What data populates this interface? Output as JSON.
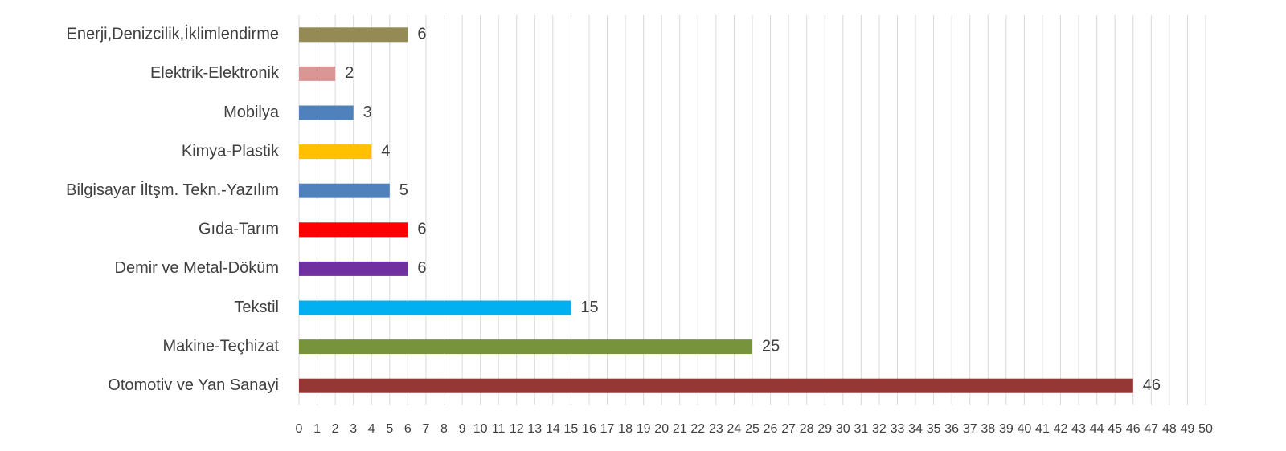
{
  "chart_data": {
    "type": "bar",
    "orientation": "horizontal",
    "categories": [
      "Enerji,Denizcilik,İklimlendirme",
      "Elektrik-Elektronik",
      "Mobilya",
      "Kimya-Plastik",
      "Bilgisayar İltşm. Tekn.-Yazılım",
      "Gıda-Tarım",
      "Demir ve Metal-Döküm",
      "Tekstil",
      "Makine-Teçhizat",
      "Otomotiv ve Yan Sanayi"
    ],
    "values": [
      6,
      2,
      3,
      4,
      5,
      6,
      6,
      15,
      25,
      46
    ],
    "colors": [
      "#948a54",
      "#d99694",
      "#4f81bd",
      "#ffc000",
      "#4f81bd",
      "#ff0000",
      "#7030a0",
      "#00b0f0",
      "#77933c",
      "#953735"
    ],
    "xlim": [
      0,
      50
    ],
    "xticks": [
      0,
      1,
      2,
      3,
      4,
      5,
      6,
      7,
      8,
      9,
      10,
      11,
      12,
      13,
      14,
      15,
      16,
      17,
      18,
      19,
      20,
      21,
      22,
      23,
      24,
      25,
      26,
      27,
      28,
      29,
      30,
      31,
      32,
      33,
      34,
      35,
      36,
      37,
      38,
      39,
      40,
      41,
      42,
      43,
      44,
      45,
      46,
      47,
      48,
      49,
      50
    ],
    "grid": true
  }
}
